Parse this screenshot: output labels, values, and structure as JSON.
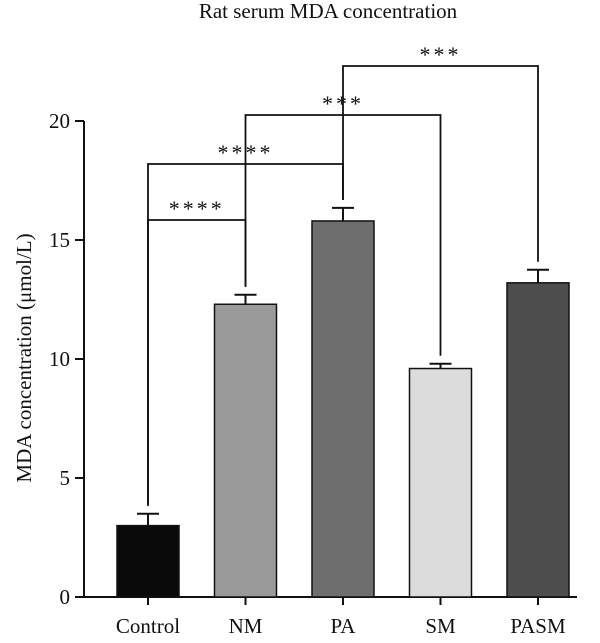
{
  "chart_data": {
    "type": "bar",
    "title": "Rat serum MDA concentration",
    "xlabel": "",
    "ylabel": "MDA concentration (μmol/L)",
    "ylim": [
      0,
      20
    ],
    "yticks": [
      0,
      5,
      10,
      15,
      20
    ],
    "grid": false,
    "categories": [
      "Control",
      "NM",
      "PA",
      "SM",
      "PASM"
    ],
    "values": [
      3.0,
      12.3,
      15.8,
      9.6,
      13.2
    ],
    "errors": [
      0.5,
      0.4,
      0.55,
      0.2,
      0.55
    ],
    "bar_colors": [
      "#0a0a0a",
      "#9a9a9a",
      "#6e6e6e",
      "#dcdcdc",
      "#4d4d4d"
    ],
    "significance": [
      {
        "from": "Control",
        "to": "NM",
        "label": "****"
      },
      {
        "from": "Control",
        "to": "PA",
        "label": "****"
      },
      {
        "from": "NM",
        "to": "SM",
        "label": "***"
      },
      {
        "from": "PA",
        "to": "PASM",
        "label": "***"
      }
    ]
  }
}
